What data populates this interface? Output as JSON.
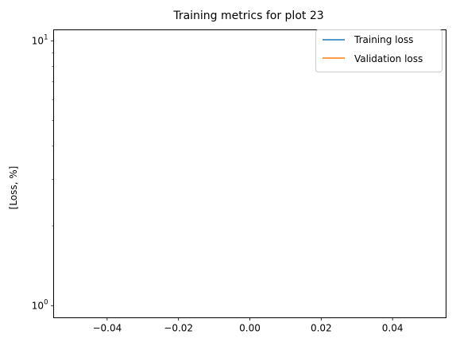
{
  "chart_data": {
    "type": "line",
    "title": "Training metrics for plot 23",
    "xlabel": "",
    "ylabel": "[Loss, %]",
    "yscale": "log",
    "xlim": [
      -0.055,
      0.055
    ],
    "ylim": [
      0.9,
      11
    ],
    "x_ticks": [
      -0.04,
      -0.02,
      0.0,
      0.02,
      0.04
    ],
    "x_tick_labels": [
      "−0.04",
      "−0.02",
      "0.00",
      "0.02",
      "0.04"
    ],
    "y_major_ticks": [
      1,
      10
    ],
    "y_tick_labels": [
      {
        "base": "10",
        "exp": "0"
      },
      {
        "base": "10",
        "exp": "1"
      }
    ],
    "y_minor_ticks": [
      2,
      3,
      4,
      5,
      6,
      7,
      8,
      9
    ],
    "grid": false,
    "legend_position": "top-right",
    "series": [
      {
        "name": "Training loss",
        "color": "#1f77b4",
        "x": [],
        "y": []
      },
      {
        "name": "Validation loss",
        "color": "#ff7f0e",
        "x": [],
        "y": []
      }
    ]
  }
}
